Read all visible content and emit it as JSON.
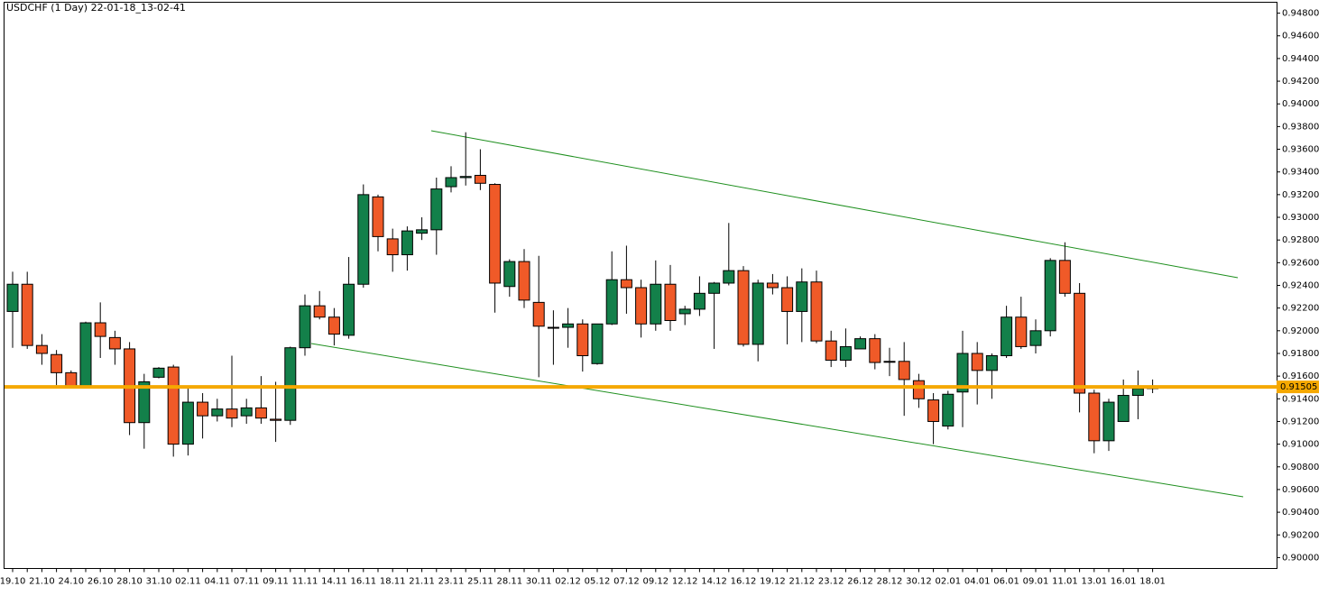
{
  "chart_data": {
    "type": "candlestick",
    "title": "USDCHF (1 Day) 22-01-18_13-02-41",
    "categories": [
      "19.10",
      null,
      "21.10",
      null,
      "24.10",
      null,
      "26.10",
      null,
      "28.10",
      null,
      "31.10",
      null,
      "02.11",
      null,
      "04.11",
      null,
      "07.11",
      null,
      "09.11",
      null,
      "11.11",
      null,
      "14.11",
      null,
      "16.11",
      null,
      "18.11",
      null,
      "21.11",
      null,
      "23.11",
      null,
      "25.11",
      null,
      "28.11",
      null,
      "30.11",
      null,
      "02.12",
      null,
      "05.12",
      null,
      "07.12",
      null,
      "09.12",
      null,
      "12.12",
      null,
      "14.12",
      null,
      "16.12",
      null,
      "19.12",
      null,
      "21.12",
      null,
      "23.12",
      null,
      "26.12",
      null,
      "28.12",
      null,
      "30.12",
      null,
      "02.01",
      null,
      "04.01",
      null,
      "06.01",
      null,
      "09.01",
      null,
      "11.01",
      null,
      "13.01",
      null,
      "16.01",
      null,
      "18.01"
    ],
    "open": [
      0.9217,
      0.9241,
      0.9187,
      0.9179,
      0.9163,
      0.9151,
      0.9207,
      0.9194,
      0.9184,
      0.9119,
      0.9159,
      0.9168,
      0.91,
      0.9137,
      0.9125,
      0.9131,
      0.9125,
      0.9132,
      0.9122,
      0.9121,
      0.9185,
      0.9222,
      0.9212,
      0.9196,
      0.9241,
      0.9318,
      0.9281,
      0.9267,
      0.9286,
      0.9289,
      0.9327,
      0.9335,
      0.9337,
      0.9329,
      0.9239,
      0.9261,
      0.9225,
      0.9203,
      0.9203,
      0.9206,
      0.9171,
      0.9206,
      0.9245,
      0.9238,
      0.9206,
      0.9241,
      0.9215,
      0.9219,
      0.9233,
      0.9242,
      0.9253,
      0.9188,
      0.9242,
      0.9238,
      0.9217,
      0.9243,
      0.9191,
      0.9174,
      0.9184,
      0.9193,
      0.9173,
      0.9173,
      0.9156,
      0.9139,
      0.9116,
      0.9146,
      0.918,
      0.9165,
      0.9178,
      0.9212,
      0.9187,
      0.92,
      0.9262,
      0.9233,
      0.9145,
      0.9103,
      0.912,
      0.9143,
      0.9149
    ],
    "high": [
      0.9252,
      0.9252,
      0.9197,
      0.9183,
      0.9165,
      0.9208,
      0.9225,
      0.92,
      0.919,
      0.9162,
      0.9168,
      0.917,
      0.915,
      0.9145,
      0.914,
      0.9178,
      0.914,
      0.916,
      0.9155,
      0.9186,
      0.9232,
      0.9235,
      0.922,
      0.9265,
      0.9329,
      0.932,
      0.929,
      0.9292,
      0.93,
      0.9335,
      0.9345,
      0.9375,
      0.936,
      0.933,
      0.9263,
      0.9272,
      0.9266,
      0.9218,
      0.922,
      0.921,
      0.9206,
      0.927,
      0.9275,
      0.9245,
      0.9262,
      0.9258,
      0.9222,
      0.9248,
      0.9243,
      0.9295,
      0.9257,
      0.9245,
      0.925,
      0.9248,
      0.9255,
      0.9253,
      0.92,
      0.9202,
      0.9195,
      0.9197,
      0.9185,
      0.919,
      0.9162,
      0.9145,
      0.9147,
      0.92,
      0.919,
      0.918,
      0.9222,
      0.923,
      0.921,
      0.9264,
      0.9278,
      0.9242,
      0.9148,
      0.914,
      0.9157,
      0.9165,
      0.9157
    ],
    "low": [
      0.9185,
      0.9184,
      0.917,
      0.9152,
      0.915,
      0.915,
      0.9176,
      0.917,
      0.9108,
      0.9096,
      0.9158,
      0.9089,
      0.909,
      0.9105,
      0.912,
      0.9115,
      0.9118,
      0.9118,
      0.9102,
      0.9117,
      0.9178,
      0.921,
      0.9187,
      0.9193,
      0.9238,
      0.927,
      0.9252,
      0.9253,
      0.928,
      0.9267,
      0.9322,
      0.9328,
      0.9324,
      0.9216,
      0.923,
      0.922,
      0.9159,
      0.917,
      0.9185,
      0.9164,
      0.917,
      0.9205,
      0.9215,
      0.9194,
      0.92,
      0.92,
      0.9205,
      0.9213,
      0.9184,
      0.924,
      0.9186,
      0.9173,
      0.9232,
      0.9188,
      0.919,
      0.9189,
      0.9168,
      0.9168,
      0.9184,
      0.9166,
      0.916,
      0.9125,
      0.9132,
      0.91,
      0.9113,
      0.9115,
      0.9135,
      0.914,
      0.9176,
      0.9184,
      0.918,
      0.9195,
      0.923,
      0.9128,
      0.9092,
      0.9094,
      0.912,
      0.9122,
      0.9145
    ],
    "close": [
      0.9241,
      0.9187,
      0.918,
      0.9163,
      0.9151,
      0.9207,
      0.9195,
      0.9184,
      0.9119,
      0.9155,
      0.9167,
      0.91,
      0.9137,
      0.9125,
      0.9131,
      0.9123,
      0.9132,
      0.9123,
      0.9121,
      0.9185,
      0.9222,
      0.9212,
      0.9197,
      0.9241,
      0.932,
      0.9283,
      0.9267,
      0.9288,
      0.9289,
      0.9325,
      0.9335,
      0.9336,
      0.933,
      0.9242,
      0.9261,
      0.9227,
      0.9204,
      0.9203,
      0.9206,
      0.9178,
      0.9206,
      0.9245,
      0.9238,
      0.9206,
      0.9241,
      0.9209,
      0.9219,
      0.9233,
      0.9242,
      0.9253,
      0.9188,
      0.9242,
      0.9238,
      0.9217,
      0.9243,
      0.9191,
      0.9174,
      0.9186,
      0.9193,
      0.9172,
      0.9173,
      0.9157,
      0.914,
      0.912,
      0.9144,
      0.918,
      0.9165,
      0.9178,
      0.9212,
      0.9186,
      0.92,
      0.9262,
      0.9233,
      0.9145,
      0.9103,
      0.9137,
      0.9143,
      0.9149,
      0.91505
    ],
    "up_color": "#13804a",
    "down_color": "#f05a28",
    "ylim": [
      0.89904,
      0.94896
    ],
    "yticks": [
      {
        "value": 0.9,
        "label": "0.90000"
      },
      {
        "value": 0.902,
        "label": "0.90200"
      },
      {
        "value": 0.904,
        "label": "0.90400"
      },
      {
        "value": 0.906,
        "label": "0.90600"
      },
      {
        "value": 0.908,
        "label": "0.90800"
      },
      {
        "value": 0.91,
        "label": "0.91000"
      },
      {
        "value": 0.912,
        "label": "0.91200"
      },
      {
        "value": 0.914,
        "label": "0.91400"
      },
      {
        "value": 0.916,
        "label": "0.91600"
      },
      {
        "value": 0.918,
        "label": "0.91800"
      },
      {
        "value": 0.92,
        "label": "0.92000"
      },
      {
        "value": 0.922,
        "label": "0.92200"
      },
      {
        "value": 0.924,
        "label": "0.92400"
      },
      {
        "value": 0.926,
        "label": "0.92600"
      },
      {
        "value": 0.928,
        "label": "0.92800"
      },
      {
        "value": 0.93,
        "label": "0.93000"
      },
      {
        "value": 0.932,
        "label": "0.93200"
      },
      {
        "value": 0.934,
        "label": "0.93400"
      },
      {
        "value": 0.936,
        "label": "0.93600"
      },
      {
        "value": 0.938,
        "label": "0.93800"
      },
      {
        "value": 0.94,
        "label": "0.94000"
      },
      {
        "value": 0.942,
        "label": "0.94200"
      },
      {
        "value": 0.944,
        "label": "0.94400"
      },
      {
        "value": 0.946,
        "label": "0.94600"
      },
      {
        "value": 0.948,
        "label": "0.94800"
      }
    ],
    "price_line": {
      "value": 0.91505,
      "label": "0.91505",
      "color": "#f5a800"
    }
  }
}
